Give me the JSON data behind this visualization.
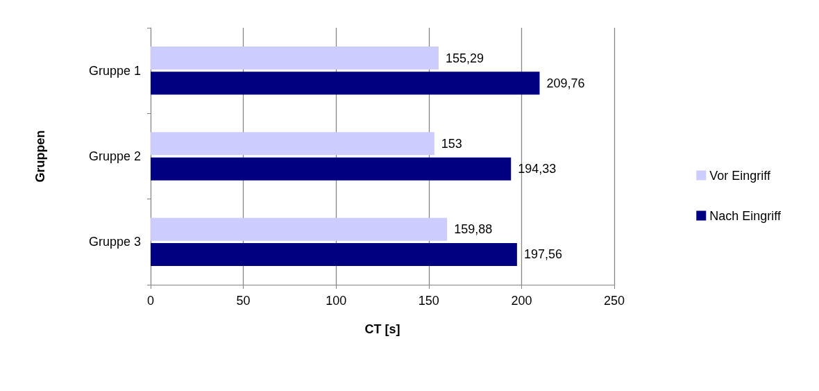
{
  "chart_data": {
    "type": "bar",
    "orientation": "horizontal",
    "xlabel": "CT [s]",
    "ylabel": "Gruppen",
    "categories": [
      "Gruppe 1",
      "Gruppe 2",
      "Gruppe 3"
    ],
    "series": [
      {
        "name": "Vor Eingriff",
        "color": "#ccccff",
        "values": [
          155.29,
          153,
          159.88
        ],
        "value_labels": [
          "155,29",
          "153",
          "159,88"
        ]
      },
      {
        "name": "Nach Eingriff",
        "color": "#000080",
        "values": [
          209.76,
          194.33,
          197.56
        ],
        "value_labels": [
          "209,76",
          "194,33",
          "197,56"
        ]
      }
    ],
    "xlim": [
      0,
      250
    ],
    "xticks": [
      0,
      50,
      100,
      150,
      200,
      250
    ],
    "grid": "x",
    "legend": "right"
  }
}
